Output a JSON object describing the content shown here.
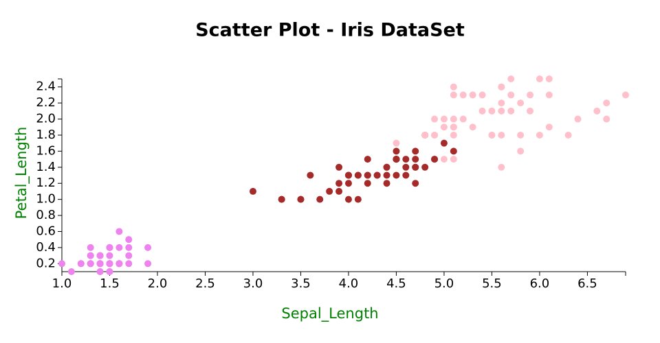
{
  "chart_data": {
    "type": "scatter",
    "title": "Scatter Plot - Iris DataSet",
    "x_label": "Sepal_Length",
    "y_label": "Petal_Length",
    "xlim": [
      1.0,
      6.9
    ],
    "ylim": [
      0.1,
      2.5
    ],
    "xticks": [
      {
        "value": 1.0,
        "label": "1.0"
      },
      1.5,
      {
        "value": 2.0,
        "label": "2.0"
      },
      2.5,
      {
        "value": 3.0,
        "label": "3.0"
      },
      3.5,
      {
        "value": 4.0,
        "label": "4.0"
      },
      4.5,
      {
        "value": 5.0,
        "label": "5.0"
      },
      5.5,
      {
        "value": 6.0,
        "label": "6.0"
      },
      6.5
    ],
    "yticks": [
      0.2,
      0.4,
      0.6,
      0.8,
      {
        "value": 1.0,
        "label": "1.0"
      },
      1.2,
      1.4,
      1.6,
      1.8,
      {
        "value": 2.0,
        "label": "2.0"
      },
      2.2,
      2.4
    ],
    "grid": false,
    "series": [
      {
        "color": "#ee82ee",
        "x": [
          1.4,
          1.4,
          1.3,
          1.5,
          1.4,
          1.7,
          1.4,
          1.5,
          1.4,
          1.5,
          1.5,
          1.6,
          1.4,
          1.1,
          1.2,
          1.5,
          1.3,
          1.4,
          1.7,
          1.5,
          1.7,
          1.5,
          1.0,
          1.7,
          1.9,
          1.6,
          1.6,
          1.5,
          1.4,
          1.6,
          1.6,
          1.5,
          1.5,
          1.4,
          1.5,
          1.2,
          1.3,
          1.4,
          1.3,
          1.5,
          1.3,
          1.3,
          1.3,
          1.6,
          1.9,
          1.4,
          1.6,
          1.4,
          1.5,
          1.4
        ],
        "values": [
          0.2,
          0.2,
          0.2,
          0.2,
          0.2,
          0.4,
          0.3,
          0.2,
          0.2,
          0.1,
          0.2,
          0.2,
          0.1,
          0.1,
          0.2,
          0.4,
          0.4,
          0.3,
          0.3,
          0.3,
          0.2,
          0.4,
          0.2,
          0.5,
          0.2,
          0.2,
          0.4,
          0.2,
          0.2,
          0.2,
          0.2,
          0.4,
          0.1,
          0.2,
          0.2,
          0.2,
          0.2,
          0.1,
          0.2,
          0.2,
          0.3,
          0.3,
          0.2,
          0.6,
          0.4,
          0.3,
          0.2,
          0.2,
          0.2,
          0.2
        ]
      },
      {
        "color": "#a52a2a",
        "x": [
          4.7,
          4.5,
          4.9,
          4.0,
          4.6,
          4.5,
          4.7,
          3.3,
          4.6,
          3.9,
          3.5,
          4.2,
          4.0,
          4.7,
          3.6,
          4.4,
          4.5,
          4.1,
          4.5,
          3.9,
          4.8,
          4.0,
          4.9,
          4.7,
          4.3,
          4.4,
          4.8,
          5.0,
          4.5,
          3.5,
          3.8,
          3.7,
          3.9,
          5.1,
          4.5,
          4.5,
          4.7,
          4.4,
          4.1,
          4.0,
          4.4,
          4.6,
          4.0,
          3.3,
          4.2,
          4.2,
          4.2,
          4.3,
          3.0,
          4.1
        ],
        "values": [
          1.4,
          1.5,
          1.5,
          1.3,
          1.5,
          1.3,
          1.6,
          1.0,
          1.3,
          1.4,
          1.0,
          1.5,
          1.0,
          1.4,
          1.3,
          1.4,
          1.5,
          1.0,
          1.5,
          1.1,
          1.8,
          1.3,
          1.5,
          1.2,
          1.3,
          1.4,
          1.4,
          1.7,
          1.5,
          1.0,
          1.1,
          1.0,
          1.2,
          1.6,
          1.5,
          1.6,
          1.5,
          1.3,
          1.3,
          1.3,
          1.2,
          1.4,
          1.2,
          1.0,
          1.3,
          1.2,
          1.3,
          1.3,
          1.1,
          1.3
        ]
      },
      {
        "color": "#ffc0cb",
        "x": [
          6.0,
          5.1,
          5.9,
          5.6,
          5.8,
          6.6,
          4.5,
          6.3,
          5.8,
          6.1,
          5.1,
          5.3,
          5.5,
          5.0,
          5.1,
          5.3,
          5.5,
          6.7,
          6.9,
          5.0,
          5.7,
          4.9,
          6.7,
          4.9,
          5.7,
          6.0,
          4.8,
          4.9,
          5.6,
          5.8,
          6.1,
          6.4,
          5.6,
          5.1,
          5.6,
          6.1,
          5.6,
          5.5,
          4.8,
          5.4,
          5.6,
          5.1,
          5.1,
          5.9,
          5.7,
          5.2,
          5.0,
          5.2,
          5.4,
          5.1
        ],
        "values": [
          2.5,
          1.9,
          2.1,
          1.8,
          2.2,
          2.1,
          1.7,
          1.8,
          1.8,
          2.5,
          2.0,
          1.9,
          2.1,
          2.0,
          2.4,
          2.3,
          1.8,
          2.2,
          2.3,
          1.5,
          2.3,
          2.0,
          2.0,
          1.8,
          2.1,
          1.8,
          1.8,
          1.8,
          2.1,
          1.6,
          1.9,
          2.0,
          2.2,
          1.5,
          1.4,
          2.3,
          2.4,
          1.8,
          1.8,
          2.1,
          2.4,
          2.3,
          1.9,
          2.3,
          2.5,
          2.3,
          1.9,
          2.0,
          2.3,
          1.8
        ]
      }
    ]
  }
}
